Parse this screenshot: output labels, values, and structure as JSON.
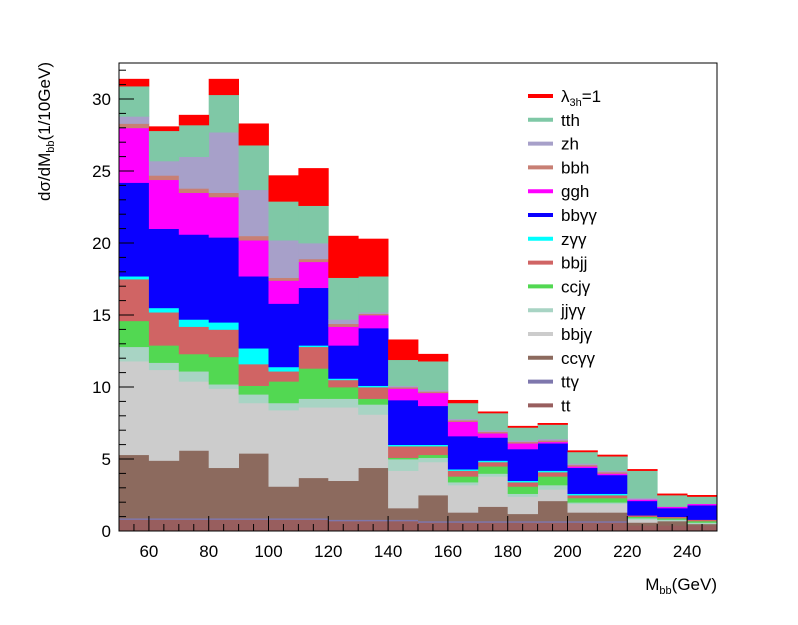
{
  "chart_data": {
    "type": "bar",
    "subtype": "stacked-histogram",
    "xlabel": {
      "main": "M",
      "sub": "bb",
      "rest": "(GeV)"
    },
    "ylabel": {
      "pre": "dσ/dM",
      "sub": "bb",
      "rest": "(1/10GeV)"
    },
    "xlim": [
      50,
      250
    ],
    "ylim": [
      0,
      32.5
    ],
    "x_ticks": [
      60,
      80,
      100,
      120,
      140,
      160,
      180,
      200,
      220,
      240
    ],
    "y_ticks": [
      0,
      5,
      10,
      15,
      20,
      25,
      30
    ],
    "bin_edges": [
      50,
      60,
      70,
      80,
      90,
      100,
      110,
      120,
      130,
      140,
      150,
      160,
      170,
      180,
      190,
      200,
      210,
      220,
      230,
      240,
      250
    ],
    "legend_position": "top-right",
    "legend": [
      {
        "label": "λ",
        "sub": "3h",
        "suffix": "=1",
        "color": "#ff0000"
      },
      {
        "label": "tth",
        "color": "#7fc8a6"
      },
      {
        "label": "zh",
        "color": "#a7a0c9"
      },
      {
        "label": "bbh",
        "color": "#c87f74"
      },
      {
        "label": "ggh",
        "color": "#ff00ff"
      },
      {
        "label": "bbγγ",
        "color": "#0a00ff"
      },
      {
        "label": "zγγ",
        "color": "#00ffff"
      },
      {
        "label": "bbjj",
        "color": "#d06464"
      },
      {
        "label": "ccjγ",
        "color": "#52d852"
      },
      {
        "label": "jjγγ",
        "color": "#a8d4c4"
      },
      {
        "label": "bbjγ",
        "color": "#cccccc"
      },
      {
        "label": "ccγγ",
        "color": "#8c6a5e"
      },
      {
        "label": "ttγ",
        "color": "#7e77ad"
      },
      {
        "label": "tt",
        "color": "#985e5e"
      }
    ],
    "series": [
      {
        "name": "tt",
        "color": "#985e5e",
        "values": [
          0.8,
          0.8,
          0.8,
          0.8,
          0.8,
          0.8,
          0.8,
          0.7,
          0.7,
          0.7,
          0.6,
          0.6,
          0.6,
          0.6,
          0.6,
          0.6,
          0.6,
          0.4,
          0.4,
          0.4
        ]
      },
      {
        "name": "ttγ",
        "color": "#7e77ad",
        "values": [
          0.1,
          0.1,
          0.1,
          0.1,
          0.1,
          0.1,
          0.1,
          0.1,
          0.1,
          0.1,
          0.1,
          0.1,
          0.1,
          0.1,
          0.1,
          0.1,
          0.1,
          0.0,
          0.0,
          0.0
        ]
      },
      {
        "name": "ccγγ",
        "color": "#8c6a5e",
        "values": [
          4.4,
          4.0,
          4.7,
          3.5,
          4.5,
          2.2,
          2.8,
          2.7,
          3.6,
          0.8,
          1.8,
          0.6,
          1.0,
          0.5,
          1.4,
          0.6,
          0.6,
          0.2,
          0.3,
          0.1
        ]
      },
      {
        "name": "bbjγ",
        "color": "#cccccc",
        "values": [
          6.5,
          6.3,
          4.8,
          5.5,
          3.5,
          5.3,
          4.9,
          5.1,
          3.7,
          2.6,
          2.3,
          1.9,
          2.1,
          1.2,
          0.8,
          0.6,
          0.6,
          0.2,
          0.0,
          0.0
        ]
      },
      {
        "name": "jjγγ",
        "color": "#a8d4c4",
        "values": [
          1.0,
          0.5,
          0.7,
          0.3,
          0.6,
          0.5,
          0.6,
          0.6,
          0.7,
          0.8,
          0.3,
          0.2,
          0.2,
          0.2,
          0.3,
          0.1,
          0.1,
          0.1,
          0.1,
          0.1
        ]
      },
      {
        "name": "ccjγ",
        "color": "#52d852",
        "values": [
          1.8,
          1.2,
          1.2,
          1.9,
          0.6,
          1.5,
          2.1,
          0.8,
          0.4,
          0.1,
          0.2,
          0.4,
          0.5,
          0.5,
          0.6,
          0.3,
          0.3,
          0.1,
          0.1,
          0.1
        ]
      },
      {
        "name": "bbjj",
        "color": "#d06464",
        "values": [
          2.9,
          2.3,
          1.9,
          1.9,
          1.5,
          0.7,
          1.5,
          0.5,
          0.8,
          0.8,
          0.6,
          0.4,
          0.3,
          0.3,
          0.3,
          0.2,
          0.2,
          0.1,
          0.1,
          0.1
        ]
      },
      {
        "name": "zγγ",
        "color": "#00ffff",
        "values": [
          0.2,
          0.3,
          0.5,
          0.5,
          1.1,
          0.3,
          0.1,
          0.1,
          0.1,
          0.1,
          0.1,
          0.1,
          0.1,
          0.1,
          0.1,
          0.1,
          0.1,
          0.0,
          0.0,
          0.0
        ]
      },
      {
        "name": "bbγγ",
        "color": "#0a00ff",
        "values": [
          6.5,
          5.5,
          5.9,
          5.9,
          5.0,
          4.4,
          4.0,
          2.3,
          4.0,
          3.1,
          2.7,
          2.3,
          1.6,
          2.2,
          1.9,
          1.8,
          1.3,
          1.0,
          0.6,
          1.0
        ]
      },
      {
        "name": "ggh",
        "color": "#ff00ff",
        "values": [
          3.8,
          3.4,
          2.9,
          2.8,
          2.5,
          1.6,
          1.8,
          1.3,
          0.9,
          0.8,
          0.9,
          1.0,
          0.3,
          0.4,
          0.1,
          0.1,
          0.1,
          0.1,
          0.1,
          0.1
        ]
      },
      {
        "name": "bbh",
        "color": "#c87f74",
        "values": [
          0.3,
          0.3,
          0.3,
          0.3,
          0.3,
          0.2,
          0.2,
          0.2,
          0.1,
          0.1,
          0.1,
          0.1,
          0.1,
          0.1,
          0.1,
          0.1,
          0.1,
          0.0,
          0.0,
          0.0
        ]
      },
      {
        "name": "zh",
        "color": "#a7a0c9",
        "values": [
          0.5,
          1.0,
          2.2,
          4.2,
          3.2,
          2.6,
          1.1,
          0.3,
          0.1,
          0.1,
          0.1,
          0.1,
          0.1,
          0.1,
          0.1,
          0.1,
          0.1,
          0.1,
          0.0,
          0.0
        ]
      },
      {
        "name": "tth",
        "color": "#7fc8a6",
        "values": [
          2.1,
          2.1,
          2.2,
          2.6,
          3.1,
          2.7,
          2.6,
          2.9,
          2.5,
          1.8,
          2.0,
          1.1,
          1.2,
          0.9,
          1.0,
          0.8,
          1.0,
          1.9,
          0.8,
          0.5
        ]
      },
      {
        "name": "λ3h=1",
        "color": "#ff0000",
        "values": [
          0.5,
          0.3,
          0.7,
          1.1,
          1.5,
          1.8,
          2.6,
          2.9,
          2.6,
          1.4,
          0.5,
          0.2,
          0.1,
          0.1,
          0.1,
          0.1,
          0.1,
          0.1,
          0.1,
          0.1
        ]
      }
    ]
  }
}
